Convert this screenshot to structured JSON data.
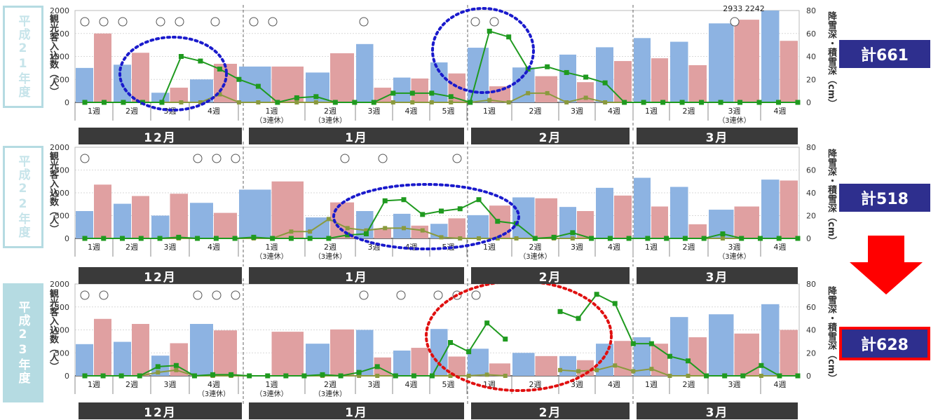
{
  "totals": [
    "計661",
    "計518",
    "計628"
  ],
  "arrow_color": "#ff0000",
  "colors": {
    "bar_blue": "#8db3e2",
    "bar_pink": "#e0a0a1",
    "line_dark": "#1f9a1f",
    "line_olive": "#8a9a3e",
    "grid": "#d9d9d9",
    "month_bar": "#3a3a3a"
  },
  "chart_data": [
    {
      "type": "bar",
      "year_label": "平成21年度",
      "ylabel": "観光客入込数（人）",
      "y2label": "降雪深・積雪深（cm）",
      "ylim": [
        0,
        2000
      ],
      "y2lim": [
        0,
        80
      ],
      "yticks": [
        "0",
        "500",
        "1000",
        "1500",
        "2000"
      ],
      "y2ticks": [
        "0",
        "20",
        "40",
        "60",
        "80"
      ],
      "weeks": [
        "1週",
        "2週",
        "3週",
        "4週",
        "1週",
        "2週",
        "3週",
        "4週",
        "5週",
        "1週",
        "2週",
        "3週",
        "4週",
        "1週",
        "2週",
        "3週",
        "4週"
      ],
      "week_sub": [
        "",
        "",
        "",
        "",
        "（3連休）",
        "（3連休）",
        "",
        "",
        "",
        "",
        "",
        "",
        "",
        "",
        "",
        "（3連休）",
        ""
      ],
      "months": [
        "12月",
        "1月",
        "2月",
        "3月"
      ],
      "annotation": "2933 2242",
      "bars": [
        {
          "blue": 750,
          "pink": 1500
        },
        {
          "blue": 820,
          "pink": 1080
        },
        {
          "blue": 210,
          "pink": 320
        },
        {
          "blue": 500,
          "pink": 840
        },
        {
          "blue": 780,
          "pink": 780
        },
        {
          "blue": 650,
          "pink": 1070
        },
        {
          "blue": 1270,
          "pink": 320
        },
        {
          "blue": 540,
          "pink": 520
        },
        {
          "blue": 870,
          "pink": 630
        },
        {
          "blue": 1190,
          "pink": 350
        },
        {
          "blue": 760,
          "pink": 570
        },
        {
          "blue": 1040,
          "pink": 440
        },
        {
          "blue": 1200,
          "pink": 900
        },
        {
          "blue": 1400,
          "pink": 960
        },
        {
          "blue": 1320,
          "pink": 810
        },
        {
          "blue": 1720,
          "pink": 1800
        },
        {
          "blue": 2000,
          "pink": 1340
        }
      ],
      "line_dark": [
        0,
        0,
        0,
        0,
        0,
        40,
        36,
        29,
        20,
        14,
        0,
        4,
        5,
        0,
        0,
        0,
        8,
        8,
        8,
        5,
        0,
        62,
        57,
        29,
        31,
        26,
        22,
        17,
        0,
        0,
        0,
        0,
        0,
        0,
        0,
        0,
        0,
        0
      ],
      "line_olive": [
        0,
        0,
        0,
        0,
        0,
        0,
        0,
        7,
        0,
        0,
        0,
        0,
        0,
        0,
        0,
        0,
        0,
        0,
        0,
        0,
        0,
        2,
        0,
        8,
        8,
        0,
        4,
        0,
        0,
        0,
        0,
        0,
        0,
        0,
        0,
        0,
        0,
        0
      ],
      "circles": [
        true,
        true,
        true,
        false,
        true,
        true,
        false,
        false,
        false,
        false,
        true,
        true,
        false,
        false,
        false,
        false,
        false,
        true,
        false,
        false,
        false,
        true,
        true,
        false,
        false,
        false,
        false,
        false,
        false,
        false,
        false,
        false,
        false,
        true,
        false,
        false,
        false,
        false
      ]
    },
    {
      "type": "bar",
      "year_label": "平成22年度",
      "ylabel": "観光客入込数（人）",
      "y2label": "降雪深・積雪深（cm）",
      "ylim": [
        0,
        2000
      ],
      "y2lim": [
        0,
        80
      ],
      "yticks": [
        "0",
        "500",
        "1000",
        "1500",
        "2000"
      ],
      "y2ticks": [
        "0",
        "20",
        "40",
        "60",
        "80"
      ],
      "weeks": [
        "1週",
        "2週",
        "3週",
        "4週",
        "1週",
        "2週",
        "3週",
        "4週",
        "5週",
        "1週",
        "2週",
        "3週",
        "4週",
        "1週",
        "2週",
        "3週",
        "4週"
      ],
      "week_sub": [
        "",
        "",
        "",
        "",
        "（3連休）",
        "（3連休）",
        "",
        "",
        "",
        "",
        "（3連休）",
        "",
        "",
        "",
        "",
        "（3連休）",
        ""
      ],
      "months": [
        "12月",
        "1月",
        "2月",
        "3月"
      ],
      "annotation": "",
      "bars": [
        {
          "blue": 600,
          "pink": 1180
        },
        {
          "blue": 760,
          "pink": 930
        },
        {
          "blue": 500,
          "pink": 980
        },
        {
          "blue": 780,
          "pink": 560
        },
        {
          "blue": 1070,
          "pink": 1250
        },
        {
          "blue": 460,
          "pink": 790
        },
        {
          "blue": 600,
          "pink": 220
        },
        {
          "blue": 540,
          "pink": 280
        },
        {
          "blue": 320,
          "pink": 440
        },
        {
          "blue": 510,
          "pink": 720
        },
        {
          "blue": 900,
          "pink": 880
        },
        {
          "blue": 690,
          "pink": 600
        },
        {
          "blue": 1110,
          "pink": 940
        },
        {
          "blue": 1330,
          "pink": 700
        },
        {
          "blue": 1130,
          "pink": 310
        },
        {
          "blue": 630,
          "pink": 700
        },
        {
          "blue": 1290,
          "pink": 1270
        }
      ],
      "line_dark": [
        0,
        0,
        0,
        0,
        0,
        1,
        0,
        0,
        0,
        1,
        0,
        0,
        0,
        0,
        3,
        4,
        33,
        34,
        21,
        24,
        26,
        34,
        15,
        13,
        0,
        1,
        5,
        0,
        0,
        0,
        0,
        0,
        0,
        0,
        4,
        0,
        0,
        0,
        0
      ],
      "line_olive": [
        0,
        0,
        0,
        0,
        0,
        0,
        0,
        0,
        0,
        0,
        0,
        6,
        6,
        17,
        9,
        7,
        9,
        9,
        7,
        1,
        0,
        0,
        0,
        0,
        0,
        0,
        0,
        0,
        0,
        0,
        0,
        0,
        0,
        0,
        0,
        0,
        0,
        0,
        0
      ],
      "circles": [
        true,
        false,
        false,
        false,
        false,
        false,
        false,
        false,
        true,
        true,
        true,
        false,
        false,
        false,
        false,
        false,
        false,
        true,
        false,
        true,
        false,
        false,
        false,
        false,
        true,
        false,
        false,
        false,
        false,
        false,
        false,
        false,
        false,
        false,
        false,
        false,
        false,
        false,
        false
      ]
    },
    {
      "type": "bar",
      "year_label": "平成23年度",
      "ylabel": "観光客入込数（人）",
      "y2label": "降雪深・積雪深（cm）",
      "ylim": [
        0,
        2000
      ],
      "y2lim": [
        0,
        80
      ],
      "yticks": [
        "0",
        "500",
        "1000",
        "1500",
        "2000"
      ],
      "y2ticks": [
        "0",
        "20",
        "40",
        "60",
        "80"
      ],
      "weeks": [
        "1週",
        "2週",
        "3週",
        "4週",
        "1週",
        "2週",
        "3週",
        "4週",
        "5週",
        "1週",
        "2週",
        "3週",
        "4週",
        "1週",
        "2週",
        "3週",
        "4週"
      ],
      "week_sub": [
        "",
        "",
        "",
        "（3連休）",
        "（3連休）",
        "（3連休）",
        "",
        "",
        "",
        "",
        "",
        "",
        "",
        "",
        "",
        "",
        ""
      ],
      "months": [
        "12月",
        "1月",
        "2月",
        "3月"
      ],
      "annotation": "",
      "bars": [
        {
          "blue": 690,
          "pink": 1240
        },
        {
          "blue": 740,
          "pink": 1130
        },
        {
          "blue": 440,
          "pink": 710
        },
        {
          "blue": 1130,
          "pink": 990
        },
        {
          "blue": 0,
          "pink": 960
        },
        {
          "blue": 700,
          "pink": 1010
        },
        {
          "blue": 1000,
          "pink": 400
        },
        {
          "blue": 550,
          "pink": 610
        },
        {
          "blue": 1020,
          "pink": 420
        },
        {
          "blue": 590,
          "pink": 270
        },
        {
          "blue": 500,
          "pink": 430
        },
        {
          "blue": 430,
          "pink": 340
        },
        {
          "blue": 700,
          "pink": 760
        },
        {
          "blue": 840,
          "pink": 700
        },
        {
          "blue": 1280,
          "pink": 840
        },
        {
          "blue": 1340,
          "pink": 920
        },
        {
          "blue": 1560,
          "pink": 1000
        }
      ],
      "line_dark": [
        0,
        0,
        0,
        0,
        8,
        9,
        0,
        1,
        1,
        0,
        0,
        0,
        0,
        1,
        0,
        3,
        8,
        0,
        0,
        0,
        29,
        21,
        46,
        32,
        null,
        null,
        56,
        50,
        71,
        63,
        28,
        28,
        17,
        13,
        0,
        0,
        0,
        9,
        0,
        0
      ],
      "line_olive": [
        0,
        0,
        0,
        0,
        3,
        5,
        0,
        0,
        0,
        0,
        0,
        0,
        0,
        0,
        0,
        0,
        0,
        0,
        0,
        0,
        0,
        0,
        1,
        0,
        null,
        null,
        5,
        4,
        5,
        9,
        4,
        6,
        0,
        0,
        0,
        0,
        0,
        0,
        0,
        0
      ],
      "circles": [
        true,
        true,
        false,
        false,
        false,
        false,
        true,
        true,
        true,
        false,
        false,
        false,
        false,
        false,
        false,
        false,
        false,
        true,
        false,
        true,
        false,
        false,
        true,
        true,
        true,
        false,
        false,
        false,
        false,
        false,
        false,
        false,
        false,
        false,
        false,
        false,
        false,
        false,
        false,
        false
      ]
    }
  ]
}
